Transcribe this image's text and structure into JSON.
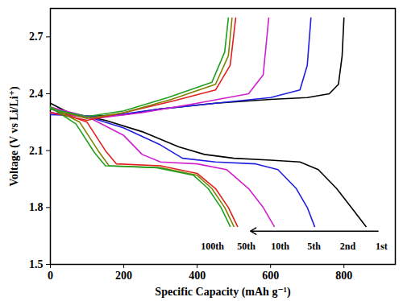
{
  "chart_data": {
    "type": "line",
    "x_label": "Specific Capacity (mAh g⁻¹)",
    "y_label": "Voltage (V vs Li/Li⁺)",
    "xlim": [
      0,
      940
    ],
    "xticks": [
      0,
      200,
      400,
      600,
      800
    ],
    "ylim": [
      1.5,
      2.85
    ],
    "yticks": [
      {
        "value": 1.5,
        "label": "1.5"
      },
      {
        "value": 1.8,
        "label": "1.8"
      },
      {
        "value": 2.1,
        "label": "2.1"
      },
      {
        "value": 2.4,
        "label": "2.4"
      },
      {
        "value": 2.7,
        "label": "2.7"
      }
    ],
    "grid": false,
    "series": [
      {
        "name": "1st",
        "color": "#000000",
        "x": [
          0,
          50,
          150,
          250,
          350,
          420,
          500,
          600,
          680,
          730,
          780,
          820,
          860,
          null,
          0,
          100,
          200,
          300,
          450,
          600,
          700,
          760,
          785,
          795,
          800
        ],
        "values": [
          2.35,
          2.3,
          2.26,
          2.2,
          2.12,
          2.08,
          2.06,
          2.05,
          2.04,
          2.0,
          1.9,
          1.8,
          1.7,
          null,
          2.3,
          2.28,
          2.29,
          2.32,
          2.35,
          2.37,
          2.38,
          2.4,
          2.45,
          2.6,
          2.8
        ]
      },
      {
        "name": "2nd",
        "color": "#1f1fe0",
        "x": [
          0,
          100,
          200,
          300,
          360,
          450,
          560,
          620,
          670,
          700,
          720,
          null,
          0,
          150,
          300,
          450,
          600,
          680,
          700,
          710
        ],
        "values": [
          2.32,
          2.28,
          2.22,
          2.13,
          2.06,
          2.04,
          2.03,
          2.0,
          1.9,
          1.8,
          1.7,
          null,
          2.29,
          2.28,
          2.32,
          2.35,
          2.38,
          2.42,
          2.55,
          2.8
        ]
      },
      {
        "name": "5th",
        "color": "#d020d0",
        "x": [
          0,
          100,
          200,
          250,
          300,
          400,
          480,
          540,
          580,
          610,
          null,
          0,
          120,
          250,
          400,
          540,
          580,
          595
        ],
        "values": [
          2.33,
          2.28,
          2.18,
          2.08,
          2.04,
          2.03,
          2.0,
          1.9,
          1.8,
          1.7,
          null,
          2.3,
          2.27,
          2.3,
          2.35,
          2.4,
          2.5,
          2.8
        ]
      },
      {
        "name": "10th",
        "color": "#e02020",
        "x": [
          0,
          100,
          150,
          180,
          300,
          400,
          450,
          485,
          510,
          null,
          0,
          100,
          200,
          330,
          450,
          490,
          505
        ],
        "values": [
          2.32,
          2.25,
          2.1,
          2.03,
          2.02,
          1.98,
          1.9,
          1.8,
          1.7,
          null,
          2.3,
          2.26,
          2.3,
          2.36,
          2.42,
          2.55,
          2.8
        ]
      },
      {
        "name": "50th",
        "color": "#808000",
        "x": [
          0,
          80,
          130,
          160,
          300,
          400,
          440,
          475,
          500,
          null,
          0,
          100,
          200,
          330,
          450,
          485,
          495
        ],
        "values": [
          2.33,
          2.25,
          2.1,
          2.02,
          2.01,
          1.97,
          1.9,
          1.8,
          1.7,
          null,
          2.32,
          2.27,
          2.3,
          2.37,
          2.45,
          2.6,
          2.8
        ]
      },
      {
        "name": "100th",
        "color": "#20a020",
        "x": [
          0,
          70,
          120,
          150,
          290,
          390,
          430,
          465,
          490,
          null,
          0,
          100,
          200,
          320,
          440,
          475,
          485
        ],
        "values": [
          2.33,
          2.24,
          2.09,
          2.02,
          2.01,
          1.97,
          1.9,
          1.8,
          1.7,
          null,
          2.32,
          2.28,
          2.31,
          2.38,
          2.46,
          2.62,
          2.8
        ]
      }
    ]
  }
}
